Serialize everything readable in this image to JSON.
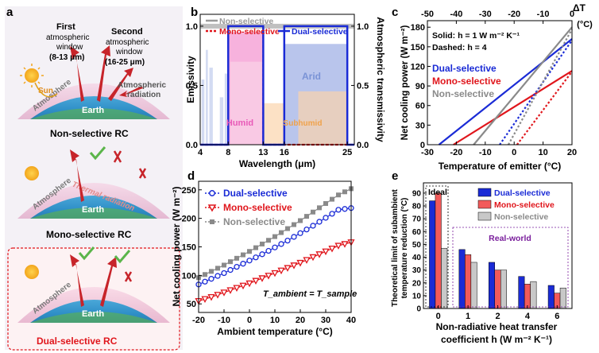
{
  "panel_a": {
    "label": "a",
    "first_window": {
      "l1": "First",
      "l2": "atmospheric",
      "l3": "window",
      "l4": "(8-13 μm)"
    },
    "second_window": {
      "l1": "Second",
      "l2": "atmospheric",
      "l3": "window",
      "l4": "(16-25 μm)"
    },
    "atm_radiation": {
      "l1": "Atmospheric",
      "l2": "radiation"
    },
    "sun": "Sun",
    "atmosphere": "Atmosphere",
    "earth": "Earth",
    "thermal_radiation": "Thermal radiation",
    "cap1": "Non-selective RC",
    "cap2": "Mono-selective RC",
    "cap3": "Dual-selective RC",
    "colors": {
      "dual_box": "#e0161c",
      "cap3": "#e0161c"
    }
  },
  "panel_b": {
    "label": "b",
    "ylabel_left": "Emissivity",
    "ylabel_right": "Atmospheric transmissivity",
    "xlabel": "Wavelength (μm)",
    "xticks": [
      "4",
      "8",
      "13",
      "16",
      "25"
    ],
    "yticks": [
      "0.0",
      "0.5",
      "1.0"
    ],
    "yticks_right": [
      "0.0",
      "0.5",
      "1.0"
    ],
    "legend": {
      "non": "Non-selective",
      "mono": "Mono-selective",
      "dual": "Dual-selective"
    },
    "regions": {
      "humid": "Humid",
      "subhumid": "Subhumid",
      "arid": "Arid"
    }
  },
  "panel_c": {
    "label": "c",
    "delta_t": "ΔT",
    "delta_unit": "(°C)",
    "top_ticks": [
      "-50",
      "-40",
      "-30",
      "-20",
      "-10",
      "0"
    ],
    "yticks": [
      "0",
      "30",
      "60",
      "90",
      "120",
      "150",
      "180"
    ],
    "xticks": [
      "-30",
      "-20",
      "-10",
      "0",
      "10",
      "20"
    ],
    "ylabel": "Net cooling power (W m⁻²)",
    "xlabel": "Temperature of emitter (°C)",
    "solid_note": "Solid: h = 1 W m⁻² K⁻¹",
    "dashed_note": "Dashed: h = 4",
    "legend": {
      "dual": "Dual-selective",
      "mono": "Mono-selective",
      "non": "Non-selective"
    }
  },
  "panel_d": {
    "label": "d",
    "yticks": [
      "50",
      "100",
      "150",
      "200",
      "250"
    ],
    "xticks": [
      "-20",
      "-10",
      "0",
      "10",
      "20",
      "30",
      "40"
    ],
    "ylabel": "Net cooling power (W m⁻²)",
    "xlabel": "Ambient temperature (°C)",
    "note": "T_ambient = T_sample",
    "legend": {
      "dual": "Dual-selective",
      "mono": "Mono-selective",
      "non": "Non-selective"
    }
  },
  "panel_e": {
    "label": "e",
    "ylabel_l1": "Theoretical limit of subambient",
    "ylabel_l2": "temperature reduction (°C)",
    "xlabel_l1": "Non-radiative heat transfer",
    "xlabel_l2": "coefficient h (W m⁻² K⁻¹)",
    "yticks": [
      "0",
      "10",
      "20",
      "30",
      "40",
      "50",
      "60",
      "70",
      "80",
      "90"
    ],
    "ideal": "Ideal",
    "real_world": "Real-world",
    "legend": {
      "dual": "Dual-selective",
      "mono": "Mono-selective",
      "non": "Non-selective"
    }
  },
  "colors": {
    "blue": "#1a2bd6",
    "red": "#e0161c",
    "gray": "#8a8a8a",
    "purple": "#7a1f9c",
    "pink": "#e85ab8",
    "orange": "#f0a24a"
  },
  "chart_data": [
    {
      "type": "area",
      "panel": "b",
      "title": "",
      "xlabel": "Wavelength (μm)",
      "ylabel": "Emissivity",
      "xlim": [
        4,
        26
      ],
      "ylim": [
        0,
        1.1
      ],
      "series": [
        {
          "name": "Non-selective",
          "x": [
            4,
            26
          ],
          "values": [
            1.0,
            1.0
          ]
        },
        {
          "name": "Mono-selective",
          "x": [
            4,
            8,
            8,
            13,
            13,
            26
          ],
          "values": [
            0,
            0,
            1,
            1,
            0,
            0
          ]
        },
        {
          "name": "Dual-selective",
          "x": [
            4,
            8,
            8,
            13,
            13,
            16,
            16,
            25,
            25,
            26
          ],
          "values": [
            0,
            0,
            1,
            1,
            0,
            0,
            1,
            1,
            0,
            0
          ]
        }
      ]
    },
    {
      "type": "line",
      "panel": "c",
      "title": "",
      "xlabel": "Temperature of emitter (°C)",
      "ylabel": "Net cooling power (W m⁻²)",
      "xlim": [
        -30,
        20
      ],
      "ylim": [
        0,
        190
      ],
      "top_axis": {
        "label": "ΔT (°C)",
        "range": [
          -50,
          0
        ]
      },
      "series": [
        {
          "name": "Dual-selective h=1",
          "x": [
            -26,
            20
          ],
          "values": [
            0,
            162
          ]
        },
        {
          "name": "Mono-selective h=1",
          "x": [
            -21,
            20
          ],
          "values": [
            0,
            113
          ]
        },
        {
          "name": "Non-selective h=1",
          "x": [
            -14,
            20
          ],
          "values": [
            0,
            180
          ]
        },
        {
          "name": "Dual-selective h=4",
          "x": [
            -5,
            20
          ],
          "values": [
            0,
            160
          ]
        },
        {
          "name": "Mono-selective h=4",
          "x": [
            1,
            20
          ],
          "values": [
            0,
            112
          ]
        },
        {
          "name": "Non-selective h=4",
          "x": [
            -2,
            20
          ],
          "values": [
            0,
            177
          ]
        }
      ]
    },
    {
      "type": "line",
      "panel": "d",
      "title": "",
      "xlabel": "Ambient temperature (°C)",
      "ylabel": "Net cooling power (W m⁻²)",
      "xlim": [
        -20,
        40
      ],
      "ylim": [
        35,
        265
      ],
      "x": [
        -20,
        -15,
        -10,
        -5,
        0,
        5,
        10,
        15,
        20,
        25,
        30,
        35,
        40
      ],
      "series": [
        {
          "name": "Dual-selective",
          "values": [
            84,
            94,
            104,
            115,
            126,
            137,
            149,
            161,
            174,
            187,
            201,
            215,
            218
          ]
        },
        {
          "name": "Mono-selective",
          "values": [
            55,
            62,
            70,
            78,
            86,
            95,
            104,
            113,
            122,
            132,
            142,
            152,
            158
          ]
        },
        {
          "name": "Non-selective",
          "values": [
            96,
            107,
            118,
            130,
            142,
            155,
            168,
            182,
            196,
            211,
            226,
            241,
            252
          ]
        }
      ]
    },
    {
      "type": "bar",
      "panel": "e",
      "title": "",
      "xlabel": "Non-radiative heat transfer coefficient h (W m⁻² K⁻¹)",
      "ylabel": "Theoretical limit of subambient temperature reduction (°C)",
      "categories": [
        "0",
        "1",
        "2",
        "4",
        "6"
      ],
      "ylim": [
        0,
        98
      ],
      "series": [
        {
          "name": "Dual-selective",
          "values": [
            84,
            46,
            36,
            25,
            18
          ]
        },
        {
          "name": "Mono-selective",
          "values": [
            90,
            42,
            30,
            19,
            12
          ]
        },
        {
          "name": "Non-selective",
          "values": [
            47,
            36,
            30,
            21,
            16
          ]
        }
      ]
    }
  ]
}
